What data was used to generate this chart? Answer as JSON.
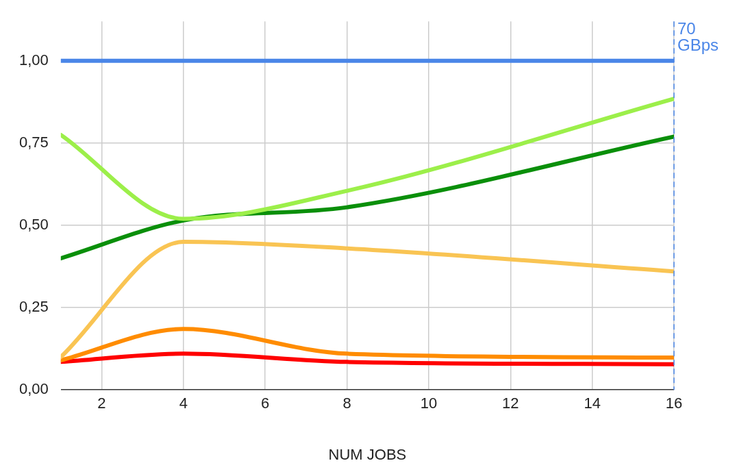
{
  "chart_data": {
    "type": "line",
    "xlabel": "NUM JOBS",
    "xlim": [
      1,
      16
    ],
    "xticks": [
      2,
      4,
      6,
      8,
      10,
      12,
      14,
      16
    ],
    "ylim": [
      0,
      1.12
    ],
    "yticks": [
      {
        "value": 0,
        "label": "0,00"
      },
      {
        "value": 0.25,
        "label": "0,25"
      },
      {
        "value": 0.5,
        "label": "0,50"
      },
      {
        "value": 0.75,
        "label": "0,75"
      },
      {
        "value": 1,
        "label": "1,00"
      }
    ],
    "x": [
      1,
      4,
      8,
      16
    ],
    "series": [
      {
        "color": "#4a86e8",
        "values": [
          1,
          1,
          1,
          1
        ]
      },
      {
        "color": "#9cef4a",
        "values": [
          0.775,
          0.52,
          0.605,
          0.885
        ]
      },
      {
        "color": "#0a8f0a",
        "values": [
          0.4,
          0.515,
          0.555,
          0.77
        ]
      },
      {
        "color": "#f9c453",
        "values": [
          0.1,
          0.45,
          0.43,
          0.36
        ]
      },
      {
        "color": "#ff8c00",
        "values": [
          0.09,
          0.185,
          0.11,
          0.098
        ]
      },
      {
        "color": "#ff0000",
        "values": [
          0.085,
          0.11,
          0.085,
          0.078
        ]
      }
    ],
    "ref_lines": [
      {
        "axis": "x",
        "value": 16,
        "label": "70 GBps",
        "color": "#4a86e8",
        "line_style": "dashed"
      }
    ],
    "grid": true,
    "legend": false,
    "marker": "none",
    "line_style": "solid"
  }
}
